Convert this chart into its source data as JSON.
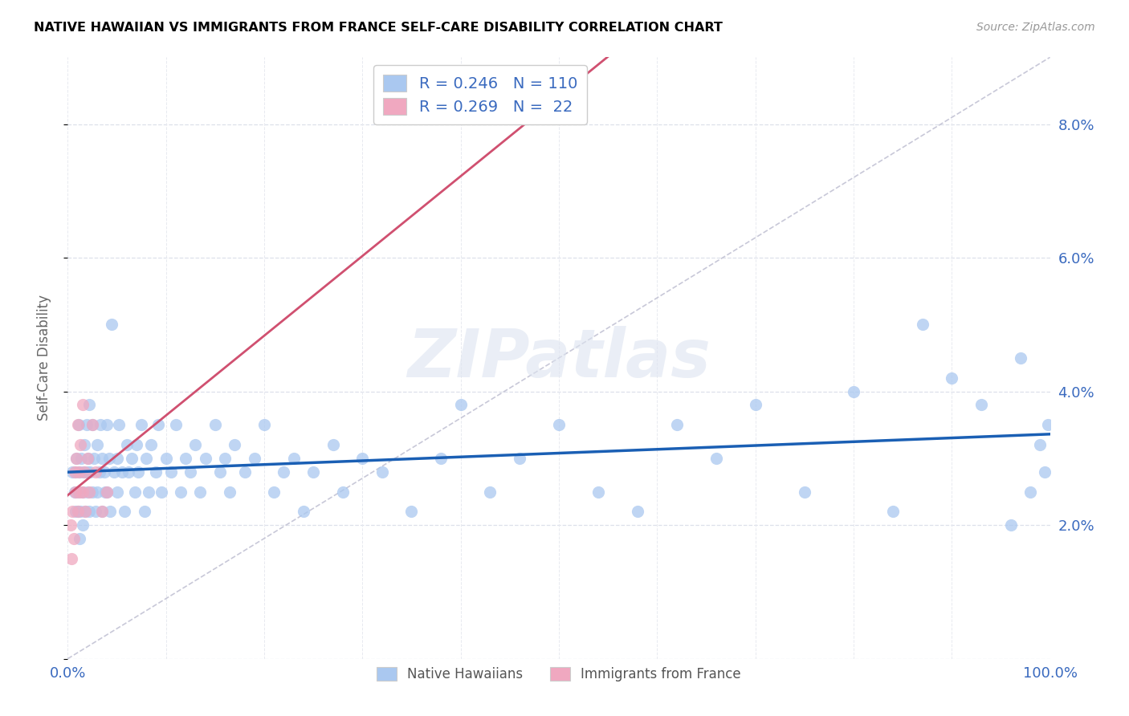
{
  "title": "NATIVE HAWAIIAN VS IMMIGRANTS FROM FRANCE SELF-CARE DISABILITY CORRELATION CHART",
  "source": "Source: ZipAtlas.com",
  "ylabel": "Self-Care Disability",
  "xlim": [
    0,
    1.0
  ],
  "ylim": [
    0,
    0.09
  ],
  "color_hawaiian": "#aac8f0",
  "color_hawaiian_edge": "#aac8f0",
  "color_france": "#f0a8c0",
  "color_france_edge": "#f0a8c0",
  "color_trendline_hawaiian": "#1a5fb4",
  "color_trendline_france": "#d05070",
  "color_diagonal": "#c8c8d8",
  "legend_label_h": "R = 0.246   N = 110",
  "legend_label_f": "R = 0.269   N =  22",
  "watermark": "ZIPatlas",
  "tick_color": "#3a6abf",
  "hawaiian_x": [
    0.005,
    0.007,
    0.008,
    0.008,
    0.009,
    0.01,
    0.01,
    0.011,
    0.012,
    0.012,
    0.013,
    0.014,
    0.015,
    0.015,
    0.016,
    0.017,
    0.018,
    0.019,
    0.02,
    0.02,
    0.021,
    0.022,
    0.022,
    0.023,
    0.025,
    0.025,
    0.027,
    0.028,
    0.03,
    0.03,
    0.032,
    0.033,
    0.035,
    0.035,
    0.037,
    0.038,
    0.04,
    0.04,
    0.042,
    0.043,
    0.045,
    0.047,
    0.05,
    0.05,
    0.052,
    0.055,
    0.058,
    0.06,
    0.062,
    0.065,
    0.068,
    0.07,
    0.072,
    0.075,
    0.078,
    0.08,
    0.082,
    0.085,
    0.09,
    0.092,
    0.095,
    0.1,
    0.105,
    0.11,
    0.115,
    0.12,
    0.125,
    0.13,
    0.135,
    0.14,
    0.15,
    0.155,
    0.16,
    0.165,
    0.17,
    0.18,
    0.19,
    0.2,
    0.21,
    0.22,
    0.23,
    0.24,
    0.25,
    0.27,
    0.28,
    0.3,
    0.32,
    0.35,
    0.38,
    0.4,
    0.43,
    0.46,
    0.5,
    0.54,
    0.58,
    0.62,
    0.66,
    0.7,
    0.75,
    0.8,
    0.84,
    0.87,
    0.9,
    0.93,
    0.96,
    0.97,
    0.98,
    0.99,
    0.995,
    0.998
  ],
  "hawaiian_y": [
    0.028,
    0.025,
    0.022,
    0.028,
    0.03,
    0.025,
    0.022,
    0.035,
    0.028,
    0.018,
    0.022,
    0.03,
    0.025,
    0.02,
    0.028,
    0.032,
    0.022,
    0.035,
    0.028,
    0.025,
    0.03,
    0.022,
    0.038,
    0.028,
    0.035,
    0.025,
    0.03,
    0.022,
    0.032,
    0.025,
    0.028,
    0.035,
    0.03,
    0.022,
    0.028,
    0.025,
    0.035,
    0.025,
    0.03,
    0.022,
    0.05,
    0.028,
    0.03,
    0.025,
    0.035,
    0.028,
    0.022,
    0.032,
    0.028,
    0.03,
    0.025,
    0.032,
    0.028,
    0.035,
    0.022,
    0.03,
    0.025,
    0.032,
    0.028,
    0.035,
    0.025,
    0.03,
    0.028,
    0.035,
    0.025,
    0.03,
    0.028,
    0.032,
    0.025,
    0.03,
    0.035,
    0.028,
    0.03,
    0.025,
    0.032,
    0.028,
    0.03,
    0.035,
    0.025,
    0.028,
    0.03,
    0.022,
    0.028,
    0.032,
    0.025,
    0.03,
    0.028,
    0.022,
    0.03,
    0.038,
    0.025,
    0.03,
    0.035,
    0.025,
    0.022,
    0.035,
    0.03,
    0.038,
    0.025,
    0.04,
    0.022,
    0.05,
    0.042,
    0.038,
    0.02,
    0.045,
    0.025,
    0.032,
    0.028,
    0.035
  ],
  "france_x": [
    0.003,
    0.004,
    0.005,
    0.006,
    0.007,
    0.008,
    0.009,
    0.01,
    0.01,
    0.011,
    0.012,
    0.013,
    0.015,
    0.015,
    0.017,
    0.018,
    0.02,
    0.022,
    0.025,
    0.028,
    0.035,
    0.04
  ],
  "france_y": [
    0.02,
    0.015,
    0.022,
    0.018,
    0.028,
    0.025,
    0.03,
    0.035,
    0.022,
    0.028,
    0.025,
    0.032,
    0.038,
    0.025,
    0.028,
    0.022,
    0.03,
    0.025,
    0.035,
    0.028,
    0.022,
    0.025
  ]
}
